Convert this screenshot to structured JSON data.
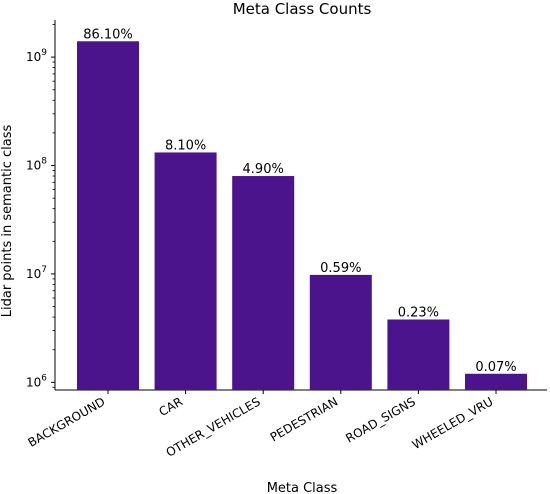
{
  "chart_data": {
    "type": "bar",
    "title": "Meta Class Counts",
    "xlabel": "Meta Class",
    "ylabel": "Lidar points in semantic class",
    "yscale": "log",
    "ylim": [
      850000,
      2200000000
    ],
    "yticks": [
      {
        "value": 1000000,
        "base": "10",
        "exp": "6"
      },
      {
        "value": 10000000,
        "base": "10",
        "exp": "7"
      },
      {
        "value": 100000000,
        "base": "10",
        "exp": "8"
      },
      {
        "value": 1000000000,
        "base": "10",
        "exp": "9"
      }
    ],
    "categories": [
      "BACKGROUND",
      "CAR",
      "OTHER_VEHICLES",
      "PEDESTRIAN",
      "ROAD_SIGNS",
      "WHEELED_VRU"
    ],
    "values": [
      1400000000,
      132000000,
      80000000,
      9800000,
      3800000,
      1200000
    ],
    "data_labels": [
      "86.10%",
      "8.10%",
      "4.90%",
      "0.59%",
      "0.23%",
      "0.07%"
    ],
    "bar_color": "#4c148c",
    "grid": false,
    "legend": "none"
  }
}
